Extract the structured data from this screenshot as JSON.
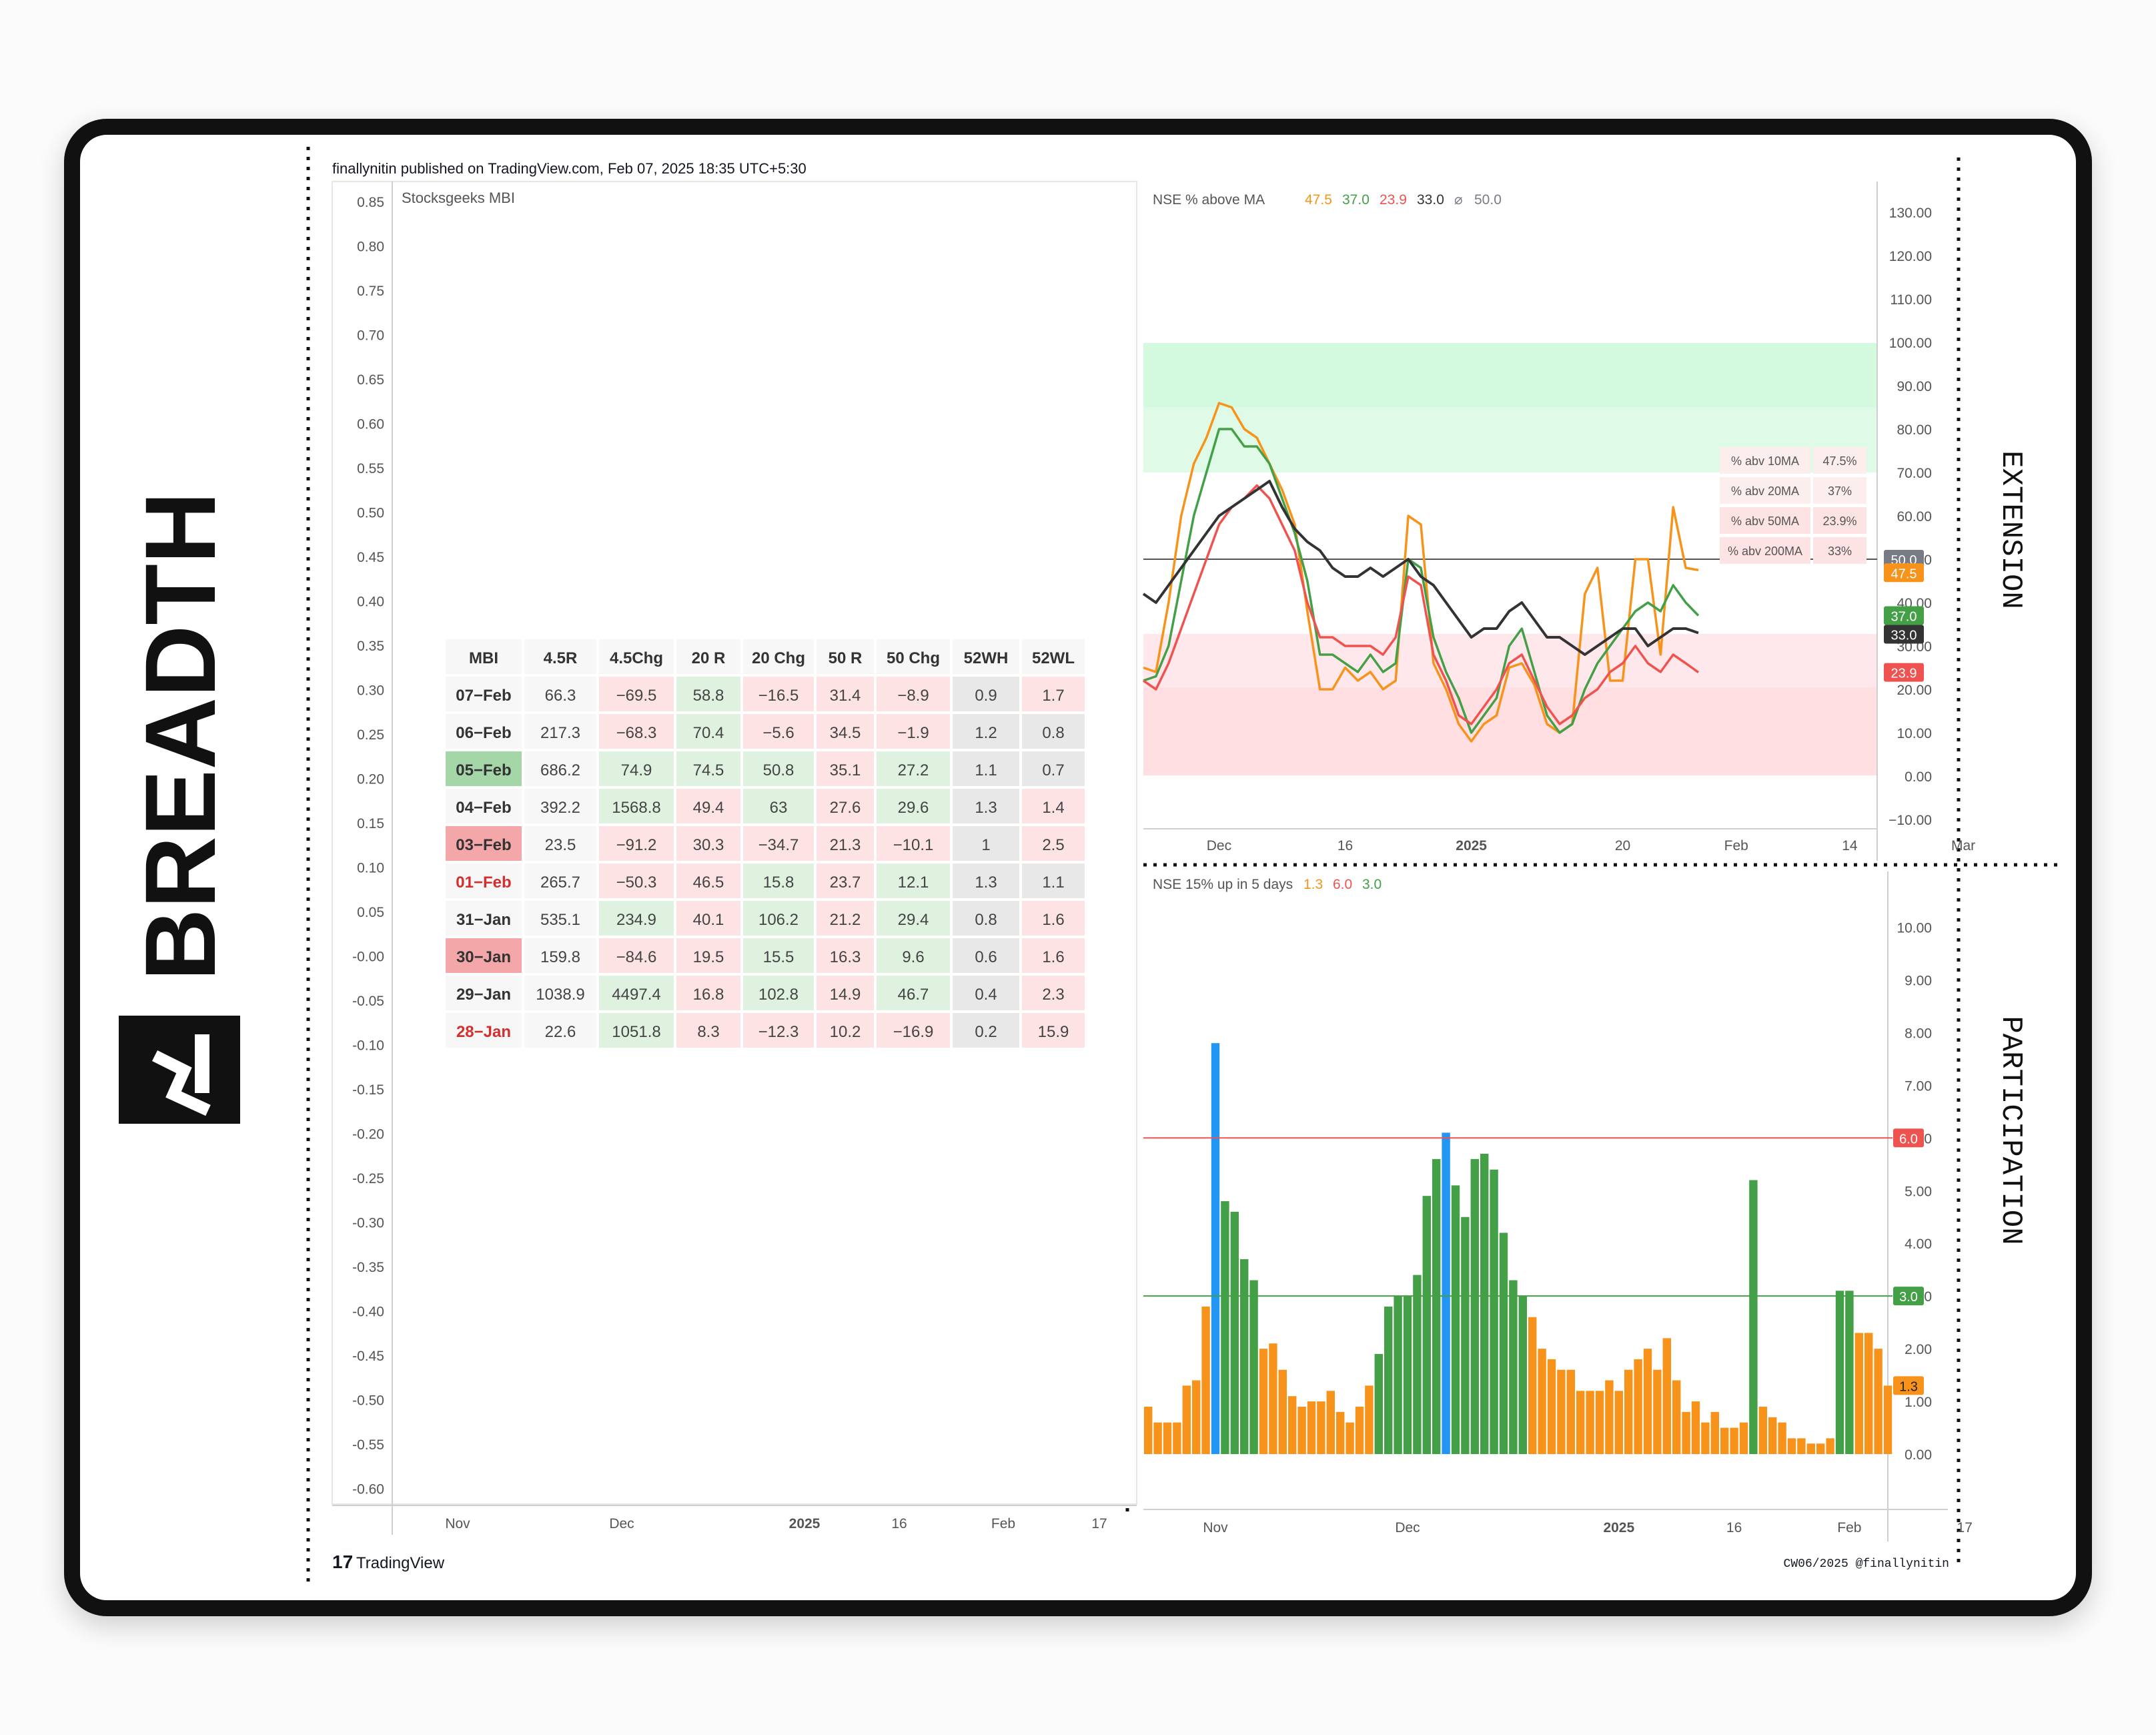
{
  "title_tag": "BREADTH",
  "publish_line": "finallynitin published on TradingView.com, Feb 07, 2025 18:35 UTC+5:30",
  "footer_brand": "TradingView",
  "footer_credit": "CW06/2025 @finallynitin",
  "colors": {
    "orange": "#f7931a",
    "green": "#43a047",
    "red": "#ef5350",
    "black": "#333333",
    "blue": "#2196f3",
    "gray": "#787b86"
  },
  "chart_data": [
    {
      "type": "table",
      "title": "Stocksgeeks MBI",
      "y_axis_ticks": [
        "0.85",
        "0.80",
        "0.75",
        "0.70",
        "0.65",
        "0.60",
        "0.55",
        "0.50",
        "0.45",
        "0.40",
        "0.35",
        "0.30",
        "0.25",
        "0.20",
        "0.15",
        "0.10",
        "0.05",
        "-0.00",
        "-0.05",
        "-0.10",
        "-0.15",
        "-0.20",
        "-0.25",
        "-0.30",
        "-0.35",
        "-0.40",
        "-0.45",
        "-0.50",
        "-0.55",
        "-0.60"
      ],
      "x_axis_ticks": [
        "Nov",
        "Dec",
        "2025",
        "16",
        "Feb",
        "17"
      ],
      "columns": [
        "MBI",
        "4.5R",
        "4.5Chg",
        "20 R",
        "20 Chg",
        "50 R",
        "50 Chg",
        "52WH",
        "52WL"
      ],
      "rows": [
        [
          "07-Feb",
          "66.3",
          "-69.5",
          "58.8",
          "-16.5",
          "31.4",
          "-8.9",
          "0.9",
          "1.7"
        ],
        [
          "06-Feb",
          "217.3",
          "-68.3",
          "70.4",
          "-5.6",
          "34.5",
          "-1.9",
          "1.2",
          "0.8"
        ],
        [
          "05-Feb",
          "686.2",
          "74.9",
          "74.5",
          "50.8",
          "35.1",
          "27.2",
          "1.1",
          "0.7"
        ],
        [
          "04-Feb",
          "392.2",
          "1568.8",
          "49.4",
          "63",
          "27.6",
          "29.6",
          "1.3",
          "1.4"
        ],
        [
          "03-Feb",
          "23.5",
          "-91.2",
          "30.3",
          "-34.7",
          "21.3",
          "-10.1",
          "1",
          "2.5"
        ],
        [
          "01-Feb",
          "265.7",
          "-50.3",
          "46.5",
          "15.8",
          "23.7",
          "12.1",
          "1.3",
          "1.1"
        ],
        [
          "31-Jan",
          "535.1",
          "234.9",
          "40.1",
          "106.2",
          "21.2",
          "29.4",
          "0.8",
          "1.6"
        ],
        [
          "30-Jan",
          "159.8",
          "-84.6",
          "19.5",
          "15.5",
          "16.3",
          "9.6",
          "0.6",
          "1.6"
        ],
        [
          "29-Jan",
          "1038.9",
          "4497.4",
          "16.8",
          "102.8",
          "14.9",
          "46.7",
          "0.4",
          "2.3"
        ],
        [
          "28-Jan",
          "22.6",
          "1051.8",
          "8.3",
          "-12.3",
          "10.2",
          "-16.9",
          "0.2",
          "15.9"
        ]
      ]
    },
    {
      "type": "line",
      "title": "NSE % above MA",
      "legend_values": [
        "47.5",
        "37.0",
        "23.9",
        "33.0",
        "⌀",
        "50.0"
      ],
      "side_label": "EXTENSION",
      "ylim": [
        -10,
        130
      ],
      "y_ticks": [
        "130.00",
        "120.00",
        "110.00",
        "100.00",
        "90.00",
        "80.00",
        "70.00",
        "60.00",
        "50.00",
        "40.00",
        "30.00",
        "20.00",
        "10.00",
        "0.00",
        "−10.00"
      ],
      "x_ticks": [
        {
          "label": "Dec",
          "i": 6
        },
        {
          "label": "16",
          "i": 16
        },
        {
          "label": "2025",
          "i": 26
        },
        {
          "label": "20",
          "i": 38
        },
        {
          "label": "Feb",
          "i": 47
        },
        {
          "label": "14",
          "i": 56
        },
        {
          "label": "Mar",
          "i": 65
        }
      ],
      "reference_line": 50,
      "series": [
        {
          "key": "orange",
          "values": [
            25,
            24,
            40,
            60,
            72,
            78,
            86,
            85,
            80,
            78,
            72,
            66,
            58,
            38,
            20,
            20,
            25,
            22,
            24,
            20,
            22,
            60,
            58,
            26,
            20,
            12,
            8,
            12,
            14,
            25,
            26,
            21,
            12,
            10,
            12,
            42,
            48,
            22,
            22,
            50,
            50,
            28,
            62,
            48,
            47.5
          ]
        },
        {
          "key": "green",
          "values": [
            22,
            23,
            30,
            45,
            60,
            70,
            80,
            80,
            76,
            76,
            72,
            64,
            56,
            45,
            28,
            28,
            26,
            24,
            28,
            24,
            26,
            50,
            48,
            32,
            24,
            18,
            10,
            14,
            18,
            30,
            34,
            24,
            14,
            10,
            12,
            20,
            26,
            30,
            34,
            38,
            40,
            38,
            44,
            40,
            37.0
          ]
        },
        {
          "key": "red",
          "values": [
            22,
            20,
            26,
            34,
            42,
            50,
            58,
            62,
            64,
            67,
            64,
            58,
            52,
            40,
            32,
            32,
            30,
            30,
            30,
            28,
            32,
            46,
            44,
            28,
            22,
            14,
            12,
            16,
            20,
            26,
            28,
            22,
            16,
            12,
            14,
            18,
            20,
            24,
            26,
            30,
            26,
            24,
            28,
            26,
            23.9
          ]
        },
        {
          "key": "black",
          "values": [
            42,
            40,
            44,
            48,
            52,
            56,
            60,
            62,
            64,
            66,
            68,
            62,
            57,
            54,
            52,
            48,
            46,
            46,
            48,
            46,
            48,
            50,
            46,
            44,
            40,
            36,
            32,
            34,
            34,
            38,
            40,
            36,
            32,
            32,
            30,
            28,
            30,
            32,
            34,
            34,
            30,
            32,
            34,
            34,
            33.0
          ]
        }
      ],
      "label_table": [
        [
          "% abv 10MA",
          "47.5%"
        ],
        [
          "% abv 20MA",
          "37%"
        ],
        [
          "% abv 50MA",
          "23.9%"
        ],
        [
          "% abv 200MA",
          "33%"
        ]
      ],
      "value_tags": [
        {
          "v": "50.0",
          "key": "gray"
        },
        {
          "v": "47.5",
          "key": "orange"
        },
        {
          "v": "37.0",
          "key": "green"
        },
        {
          "v": "33.0",
          "key": "black"
        },
        {
          "v": "23.9",
          "key": "red"
        }
      ]
    },
    {
      "type": "bar",
      "title": "NSE 15% up in 5 days",
      "legend_values": [
        "1.3",
        "6.0",
        "3.0"
      ],
      "side_label": "PARTICIPATION",
      "ylim": [
        -1,
        10.5
      ],
      "y_ticks": [
        "10.00",
        "9.00",
        "8.00",
        "7.00",
        "6.00",
        "5.00",
        "4.00",
        "3.00",
        "2.00",
        "1.00",
        "0.00"
      ],
      "x_ticks": [
        {
          "label": "Nov",
          "i": 7
        },
        {
          "label": "Dec",
          "i": 27
        },
        {
          "label": "2025",
          "i": 49
        },
        {
          "label": "16",
          "i": 61
        },
        {
          "label": "Feb",
          "i": 73
        },
        {
          "label": "17",
          "i": 85
        }
      ],
      "upper_line": 6.0,
      "lower_line": 3.0,
      "values": [
        0.9,
        0.6,
        0.6,
        0.6,
        1.3,
        1.4,
        2.8,
        7.8,
        4.8,
        4.6,
        3.7,
        3.3,
        2.0,
        2.1,
        1.6,
        1.1,
        0.9,
        1.0,
        1.0,
        1.2,
        0.8,
        0.6,
        0.9,
        1.3,
        1.9,
        2.8,
        3.0,
        3.0,
        3.4,
        4.9,
        5.6,
        6.1,
        5.1,
        4.5,
        5.6,
        5.7,
        5.4,
        4.2,
        3.3,
        3.0,
        2.6,
        2.0,
        1.8,
        1.6,
        1.6,
        1.2,
        1.2,
        1.2,
        1.4,
        1.2,
        1.6,
        1.8,
        2.0,
        1.6,
        2.2,
        1.4,
        0.8,
        1.0,
        0.6,
        0.8,
        0.5,
        0.5,
        0.6,
        5.2,
        0.9,
        0.7,
        0.6,
        0.3,
        0.3,
        0.2,
        0.2,
        0.3,
        3.1,
        3.1,
        2.3,
        2.3,
        2.0,
        1.3
      ],
      "bar_colors": [
        "o",
        "o",
        "o",
        "o",
        "o",
        "o",
        "o",
        "b",
        "g",
        "g",
        "g",
        "g",
        "o",
        "o",
        "o",
        "o",
        "o",
        "o",
        "o",
        "o",
        "o",
        "o",
        "o",
        "o",
        "g",
        "g",
        "g",
        "g",
        "g",
        "g",
        "g",
        "b",
        "g",
        "g",
        "g",
        "g",
        "g",
        "g",
        "g",
        "g",
        "o",
        "o",
        "o",
        "o",
        "o",
        "o",
        "o",
        "o",
        "o",
        "o",
        "o",
        "o",
        "o",
        "o",
        "o",
        "o",
        "o",
        "o",
        "o",
        "o",
        "o",
        "o",
        "o",
        "g",
        "o",
        "o",
        "o",
        "o",
        "o",
        "o",
        "o",
        "o",
        "g",
        "g",
        "o",
        "o",
        "o",
        "o"
      ],
      "value_tags": [
        {
          "v": "6.0",
          "key": "red",
          "y": 6.0
        },
        {
          "v": "3.0",
          "key": "green",
          "y": 3.0
        },
        {
          "v": "1.3",
          "key": "orange",
          "y": 1.3
        }
      ]
    }
  ]
}
